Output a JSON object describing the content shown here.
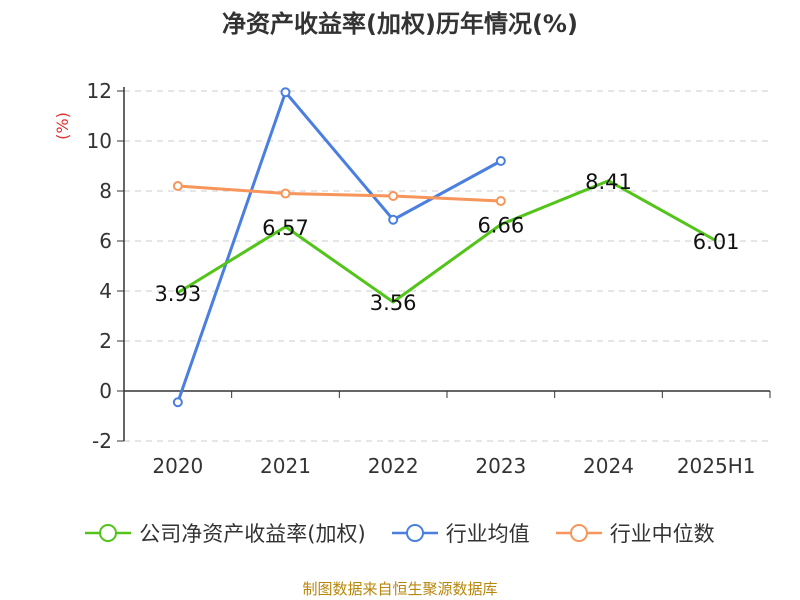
{
  "chart_data": {
    "type": "line",
    "title": "净资产收益率(加权)历年情况(%)",
    "ylabel": "(%)",
    "ylim": [
      -2,
      12
    ],
    "yticks": [
      -2,
      0,
      2,
      4,
      6,
      8,
      10,
      12
    ],
    "categories": [
      "2020",
      "2021",
      "2022",
      "2023",
      "2024",
      "2025H1"
    ],
    "grid": true,
    "legend_position": "bottom",
    "series": [
      {
        "name": "公司净资产收益率(加权)",
        "color": "#52c41a",
        "values": [
          3.93,
          6.57,
          3.56,
          6.66,
          8.41,
          6.01
        ],
        "labels": [
          "3.93",
          "6.57",
          "3.56",
          "6.66",
          "8.41",
          "6.01"
        ],
        "show_markers": false
      },
      {
        "name": "行业均值",
        "color": "#4a7fe0",
        "values": [
          -0.45,
          11.95,
          6.85,
          9.2,
          null,
          null
        ],
        "show_markers": true
      },
      {
        "name": "行业中位数",
        "color": "#f7955a",
        "values": [
          8.2,
          7.9,
          7.8,
          7.6,
          null,
          null
        ],
        "show_markers": true
      }
    ]
  },
  "footer": "制图数据来自恒生聚源数据库"
}
